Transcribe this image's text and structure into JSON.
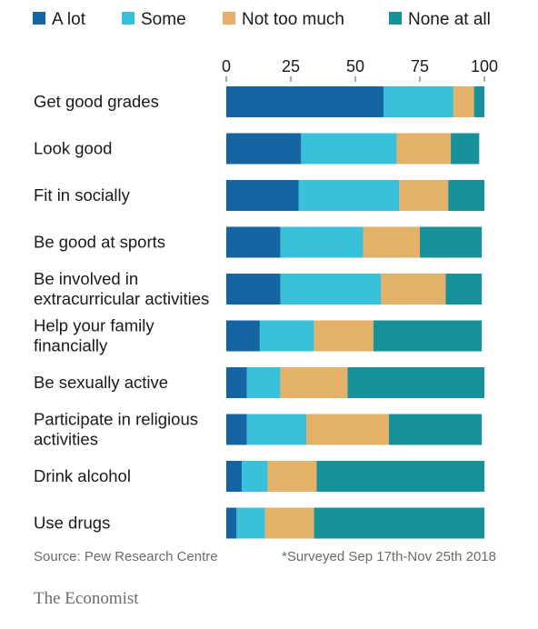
{
  "chart_data": {
    "type": "bar",
    "orientation": "horizontal",
    "stacked": true,
    "categories": [
      "Get good grades",
      "Look good",
      "Fit in socially",
      "Be good at sports",
      "Be involved in\nextracurricular activities",
      "Help your family\nfinancially",
      "Be sexually active",
      "Participate in religious\nactivities",
      "Drink alcohol",
      "Use drugs"
    ],
    "series": [
      {
        "name": "A lot",
        "color": "#1565a5",
        "values": [
          61,
          29,
          28,
          21,
          21,
          13,
          8,
          8,
          6,
          4
        ]
      },
      {
        "name": "Some",
        "color": "#39c0da",
        "values": [
          27,
          37,
          39,
          32,
          39,
          21,
          13,
          23,
          10,
          11
        ]
      },
      {
        "name": "Not too much",
        "color": "#e3b167",
        "values": [
          8,
          21,
          19,
          22,
          25,
          23,
          26,
          32,
          19,
          19
        ]
      },
      {
        "name": "None at all",
        "color": "#17919a",
        "values": [
          4,
          11,
          14,
          24,
          14,
          42,
          53,
          36,
          65,
          66
        ]
      }
    ],
    "xlim": [
      0,
      100
    ],
    "xticks": [
      0,
      25,
      50,
      75,
      100
    ],
    "xticks_position": "top",
    "legend_position": "top",
    "source": "Source: Pew Research Centre",
    "footnote": "*Surveyed Sep 17th-Nov 25th 2018",
    "brand": "The Economist"
  }
}
